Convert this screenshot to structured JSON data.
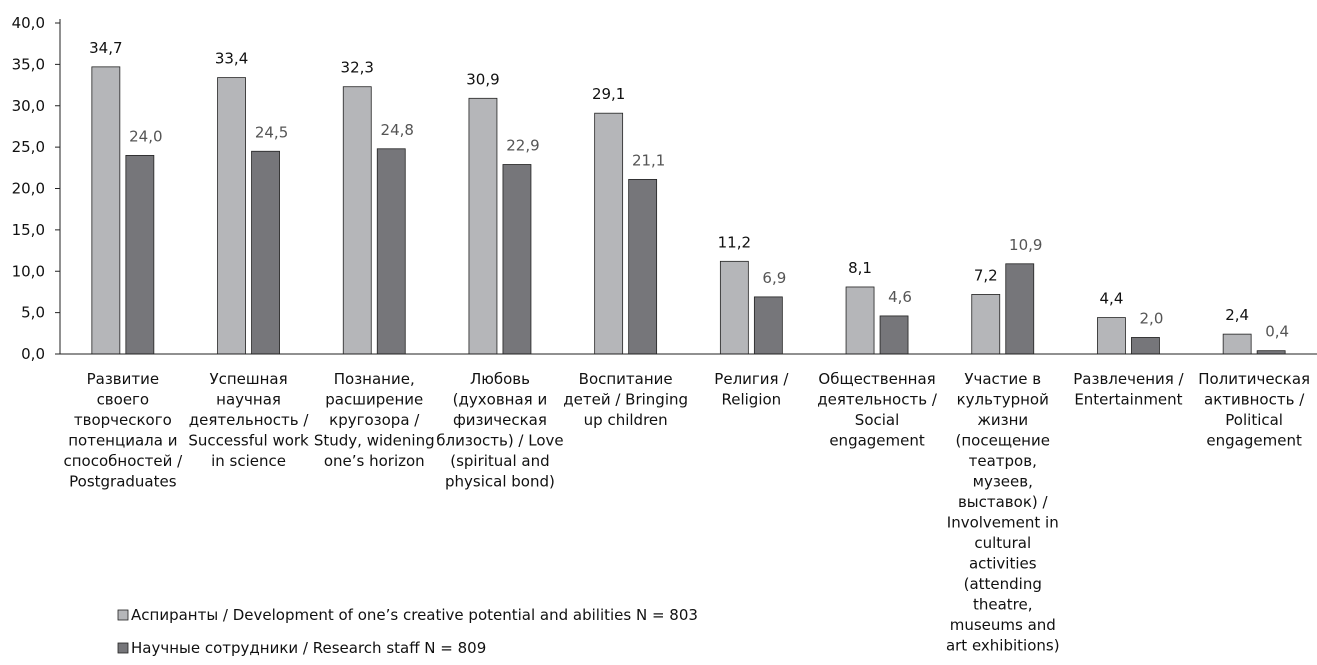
{
  "chart_data": {
    "type": "bar",
    "categories": [
      [
        "Развитие",
        "своего",
        "творческого",
        "потенциала и",
        "способностей /",
        "Postgraduates"
      ],
      [
        "Успешная",
        "научная",
        "деятельность /",
        "Successful work",
        "in science"
      ],
      [
        "Познание,",
        "расширение",
        "кругозора /",
        "Study, widening",
        "one’s horizon"
      ],
      [
        "Любовь",
        "(духовная и",
        "физическая",
        "близость) / Love",
        "(spiritual and",
        "physical bond)"
      ],
      [
        "Воспитание",
        "детей / Bringing",
        "up children"
      ],
      [
        "Религия /",
        "Religion"
      ],
      [
        "Общественная",
        "деятельность /",
        "Social",
        "engagement"
      ],
      [
        "Участие в",
        "культурной",
        "жизни",
        "(посещение",
        "театров,",
        "музеев,",
        "выставок) /",
        "Involvement in",
        "cultural",
        "activities",
        "(attending",
        "theatre,",
        "museums and",
        "art exhibitions)"
      ],
      [
        "Развлечения /",
        "Entertainment"
      ],
      [
        "Политическая",
        "активность /",
        "Political",
        "engagement"
      ]
    ],
    "series": [
      {
        "name": "Аспиранты / Development of one’s creative potential and abilities N = 803",
        "values": [
          34.7,
          33.4,
          32.3,
          30.9,
          29.1,
          11.2,
          8.1,
          7.2,
          4.4,
          2.4
        ],
        "labels": [
          "34,7",
          "33,4",
          "32,3",
          "30,9",
          "29,1",
          "11,2",
          "8,1",
          "7,2",
          "4,4",
          "2,4"
        ],
        "color": "#b5b6b9"
      },
      {
        "name": "Научные сотрудники / Research staff N = 809",
        "values": [
          24.0,
          24.5,
          24.8,
          22.9,
          21.1,
          6.9,
          4.6,
          10.9,
          2.0,
          0.4
        ],
        "labels": [
          "24,0",
          "24,5",
          "24,8",
          "22,9",
          "21,1",
          "6,9",
          "4,6",
          "10,9",
          "2,0",
          "0,4"
        ],
        "color": "#76767a"
      }
    ],
    "ylim": [
      0,
      40
    ],
    "yticks": [
      0,
      5,
      10,
      15,
      20,
      25,
      30,
      35,
      40
    ],
    "ytick_labels": [
      "0,0",
      "5,0",
      "10,0",
      "15,0",
      "20,0",
      "25,0",
      "30,0",
      "35,0",
      "40,0"
    ],
    "title": "",
    "xlabel": "",
    "ylabel": "",
    "grid": false,
    "legend_position": "bottom-left"
  }
}
